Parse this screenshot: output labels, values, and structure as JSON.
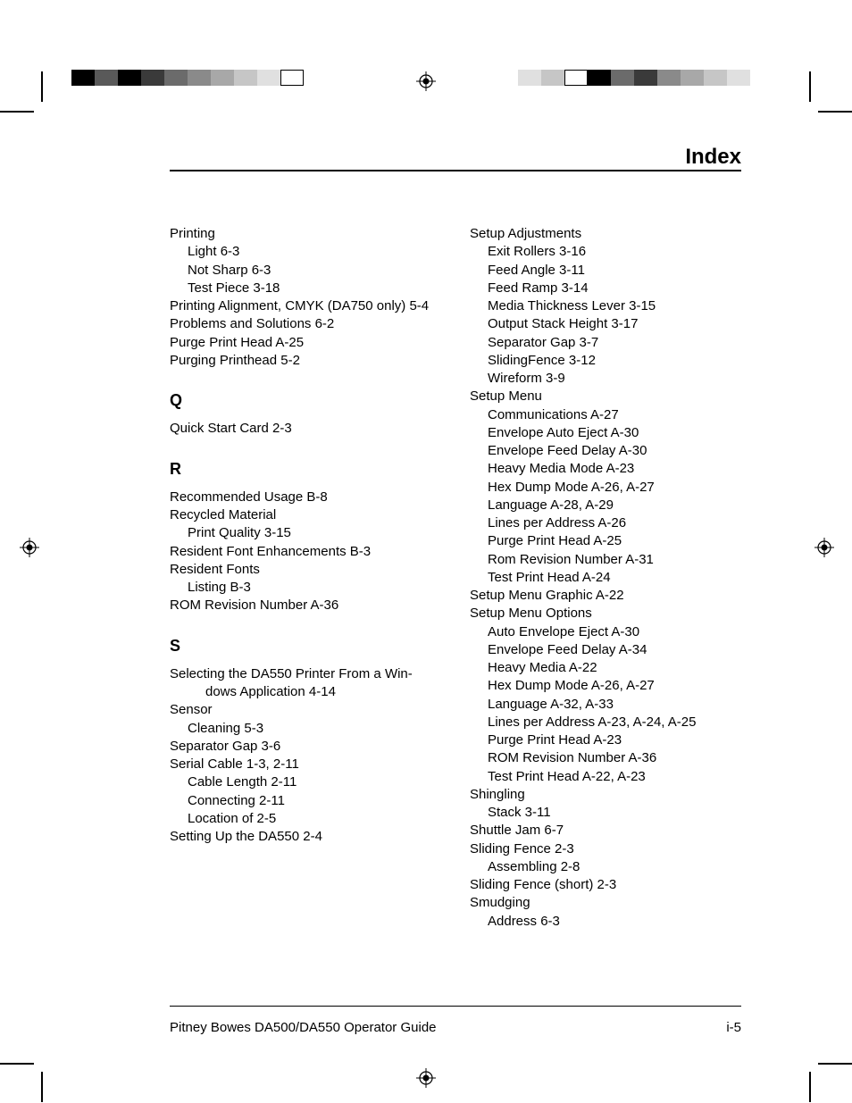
{
  "header": {
    "title": "Index"
  },
  "footer": {
    "left": "Pitney Bowes DA500/DA550 Operator Guide",
    "right": "i-5"
  },
  "colorbars": {
    "top_left": [
      "#000000",
      "#595959",
      "#000000",
      "#3a3a3a",
      "#6b6b6b",
      "#8a8a8a",
      "#a8a8a8",
      "#c6c6c6",
      "#e0e0e0",
      "#ffffff"
    ],
    "top_right": [
      "#e0e0e0",
      "#c6c6c6",
      "#ffffff",
      "#000000",
      "#6b6b6b",
      "#3a3a3a",
      "#8a8a8a",
      "#a8a8a8",
      "#c6c6c6",
      "#e0e0e0"
    ]
  },
  "left_col": [
    {
      "t": "Printing"
    },
    {
      "t": "Light  6-3",
      "sub": 1
    },
    {
      "t": "Not Sharp  6-3",
      "sub": 1
    },
    {
      "t": "Test Piece  3-18",
      "sub": 1
    },
    {
      "t": "Printing Alignment, CMYK (DA750 only)  5-4"
    },
    {
      "t": "Problems and Solutions  6-2"
    },
    {
      "t": "Purge Print Head  A-25"
    },
    {
      "t": "Purging Printhead  5-2"
    },
    {
      "letter": "Q"
    },
    {
      "t": "Quick Start Card  2-3"
    },
    {
      "letter": "R"
    },
    {
      "t": "Recommended Usage  B-8"
    },
    {
      "t": "Recycled Material"
    },
    {
      "t": "Print Quality  3-15",
      "sub": 1
    },
    {
      "t": "Resident Font Enhancements  B-3"
    },
    {
      "t": "Resident Fonts"
    },
    {
      "t": "Listing  B-3",
      "sub": 1
    },
    {
      "t": "ROM Revision Number  A-36"
    },
    {
      "letter": "S"
    },
    {
      "t": "Selecting the DA550 Printer From a Win-"
    },
    {
      "t": "dows Application  4-14",
      "sub": 2
    },
    {
      "t": "Sensor"
    },
    {
      "t": "Cleaning  5-3",
      "sub": 1
    },
    {
      "t": "Separator Gap  3-6"
    },
    {
      "t": "Serial Cable  1-3,  2-11"
    },
    {
      "t": "Cable Length  2-11",
      "sub": 1
    },
    {
      "t": "Connecting  2-11",
      "sub": 1
    },
    {
      "t": "Location of  2-5",
      "sub": 1
    },
    {
      "t": "Setting Up the DA550  2-4"
    }
  ],
  "right_col": [
    {
      "t": "Setup Adjustments"
    },
    {
      "t": "Exit Rollers  3-16",
      "sub": 1
    },
    {
      "t": "Feed Angle  3-11",
      "sub": 1
    },
    {
      "t": "Feed Ramp 3-14",
      "sub": 1
    },
    {
      "t": "Media Thickness Lever  3-15",
      "sub": 1
    },
    {
      "t": "Output Stack Height  3-17",
      "sub": 1
    },
    {
      "t": "Separator Gap  3-7",
      "sub": 1
    },
    {
      "t": "SlidingFence  3-12",
      "sub": 1
    },
    {
      "t": "Wireform  3-9",
      "sub": 1
    },
    {
      "t": "Setup Menu"
    },
    {
      "t": "Communications  A-27",
      "sub": 1
    },
    {
      "t": "Envelope Auto Eject  A-30",
      "sub": 1
    },
    {
      "t": "Envelope Feed Delay  A-30",
      "sub": 1
    },
    {
      "t": "Heavy Media Mode  A-23",
      "sub": 1
    },
    {
      "t": "Hex Dump Mode  A-26,  A-27",
      "sub": 1
    },
    {
      "t": "Language  A-28,  A-29",
      "sub": 1
    },
    {
      "t": "Lines per Address  A-26",
      "sub": 1
    },
    {
      "t": "Purge Print Head  A-25",
      "sub": 1
    },
    {
      "t": "Rom Revision Number  A-31",
      "sub": 1
    },
    {
      "t": "Test Print Head  A-24",
      "sub": 1
    },
    {
      "t": "Setup Menu Graphic  A-22"
    },
    {
      "t": "Setup Menu Options"
    },
    {
      "t": "Auto Envelope Eject  A-30",
      "sub": 1
    },
    {
      "t": "Envelope Feed Delay  A-34",
      "sub": 1
    },
    {
      "t": "Heavy Media  A-22",
      "sub": 1
    },
    {
      "t": "Hex Dump Mode  A-26,  A-27",
      "sub": 1
    },
    {
      "t": "Language  A-32,  A-33",
      "sub": 1
    },
    {
      "t": "Lines per Address  A-23,  A-24,  A-25",
      "sub": 1
    },
    {
      "t": "Purge Print Head  A-23",
      "sub": 1
    },
    {
      "t": "ROM Revision Number  A-36",
      "sub": 1
    },
    {
      "t": "Test Print Head  A-22,  A-23",
      "sub": 1
    },
    {
      "t": "Shingling"
    },
    {
      "t": "Stack  3-11",
      "sub": 1
    },
    {
      "t": "Shuttle Jam  6-7"
    },
    {
      "t": "Sliding Fence  2-3"
    },
    {
      "t": "Assembling  2-8",
      "sub": 1
    },
    {
      "t": "Sliding Fence (short)  2-3"
    },
    {
      "t": "Smudging"
    },
    {
      "t": "Address  6-3",
      "sub": 1
    }
  ]
}
